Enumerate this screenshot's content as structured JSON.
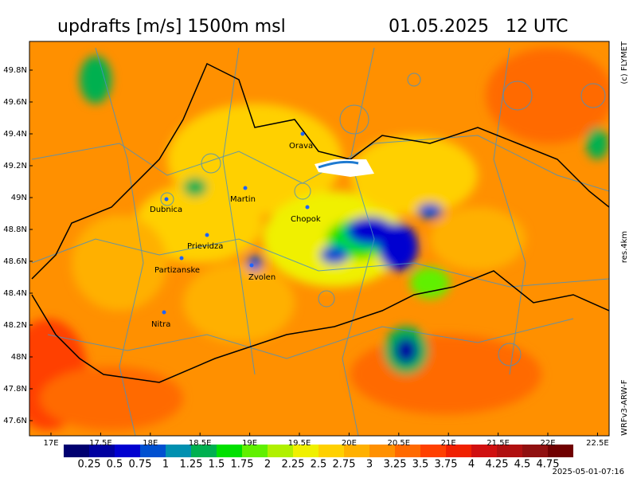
{
  "header": {
    "title": "updrafts [m/s] 1500m msl",
    "time": "01.05.2025   12 UTC"
  },
  "side_labels": {
    "copyright": "(c) FLYMET",
    "resolution": "res.4km",
    "model": "WRFv3-ARW-F"
  },
  "footer": {
    "timestamp": "2025-05-01-07:16"
  },
  "axes": {
    "lat_labels": [
      "49.8N",
      "49.6N",
      "49.4N",
      "49.2N",
      "49N",
      "48.8N",
      "48.6N",
      "48.4N",
      "48.2N",
      "48N",
      "47.8N",
      "47.6N"
    ],
    "lon_labels": [
      "17E",
      "17.5E",
      "18E",
      "18.5E",
      "19E",
      "19.5E",
      "20E",
      "20.5E",
      "21E",
      "21.5E",
      "22E",
      "22.5E"
    ]
  },
  "places": [
    {
      "name": "Orava"
    },
    {
      "name": "Martin"
    },
    {
      "name": "Dubnica"
    },
    {
      "name": "Chopok"
    },
    {
      "name": "Prievidza"
    },
    {
      "name": "Partizanske"
    },
    {
      "name": "Zvolen"
    },
    {
      "name": "Nitra"
    }
  ],
  "colorbar": {
    "colors": [
      "#000070",
      "#0000a0",
      "#0000d0",
      "#0050d0",
      "#0090b0",
      "#00b050",
      "#00e000",
      "#60f000",
      "#b0f000",
      "#f0f000",
      "#ffd000",
      "#ffb000",
      "#ff9000",
      "#ff6a00",
      "#ff4000",
      "#f02000",
      "#d01010",
      "#b01010",
      "#901010",
      "#700000"
    ],
    "labels": [
      "0.25",
      "0.5",
      "0.75",
      "1",
      "1.25",
      "1.5",
      "1.75",
      "2",
      "2.25",
      "2.5",
      "2.75",
      "3",
      "3.25",
      "3.5",
      "3.75",
      "4",
      "4.25",
      "4.5",
      "4.75"
    ]
  }
}
